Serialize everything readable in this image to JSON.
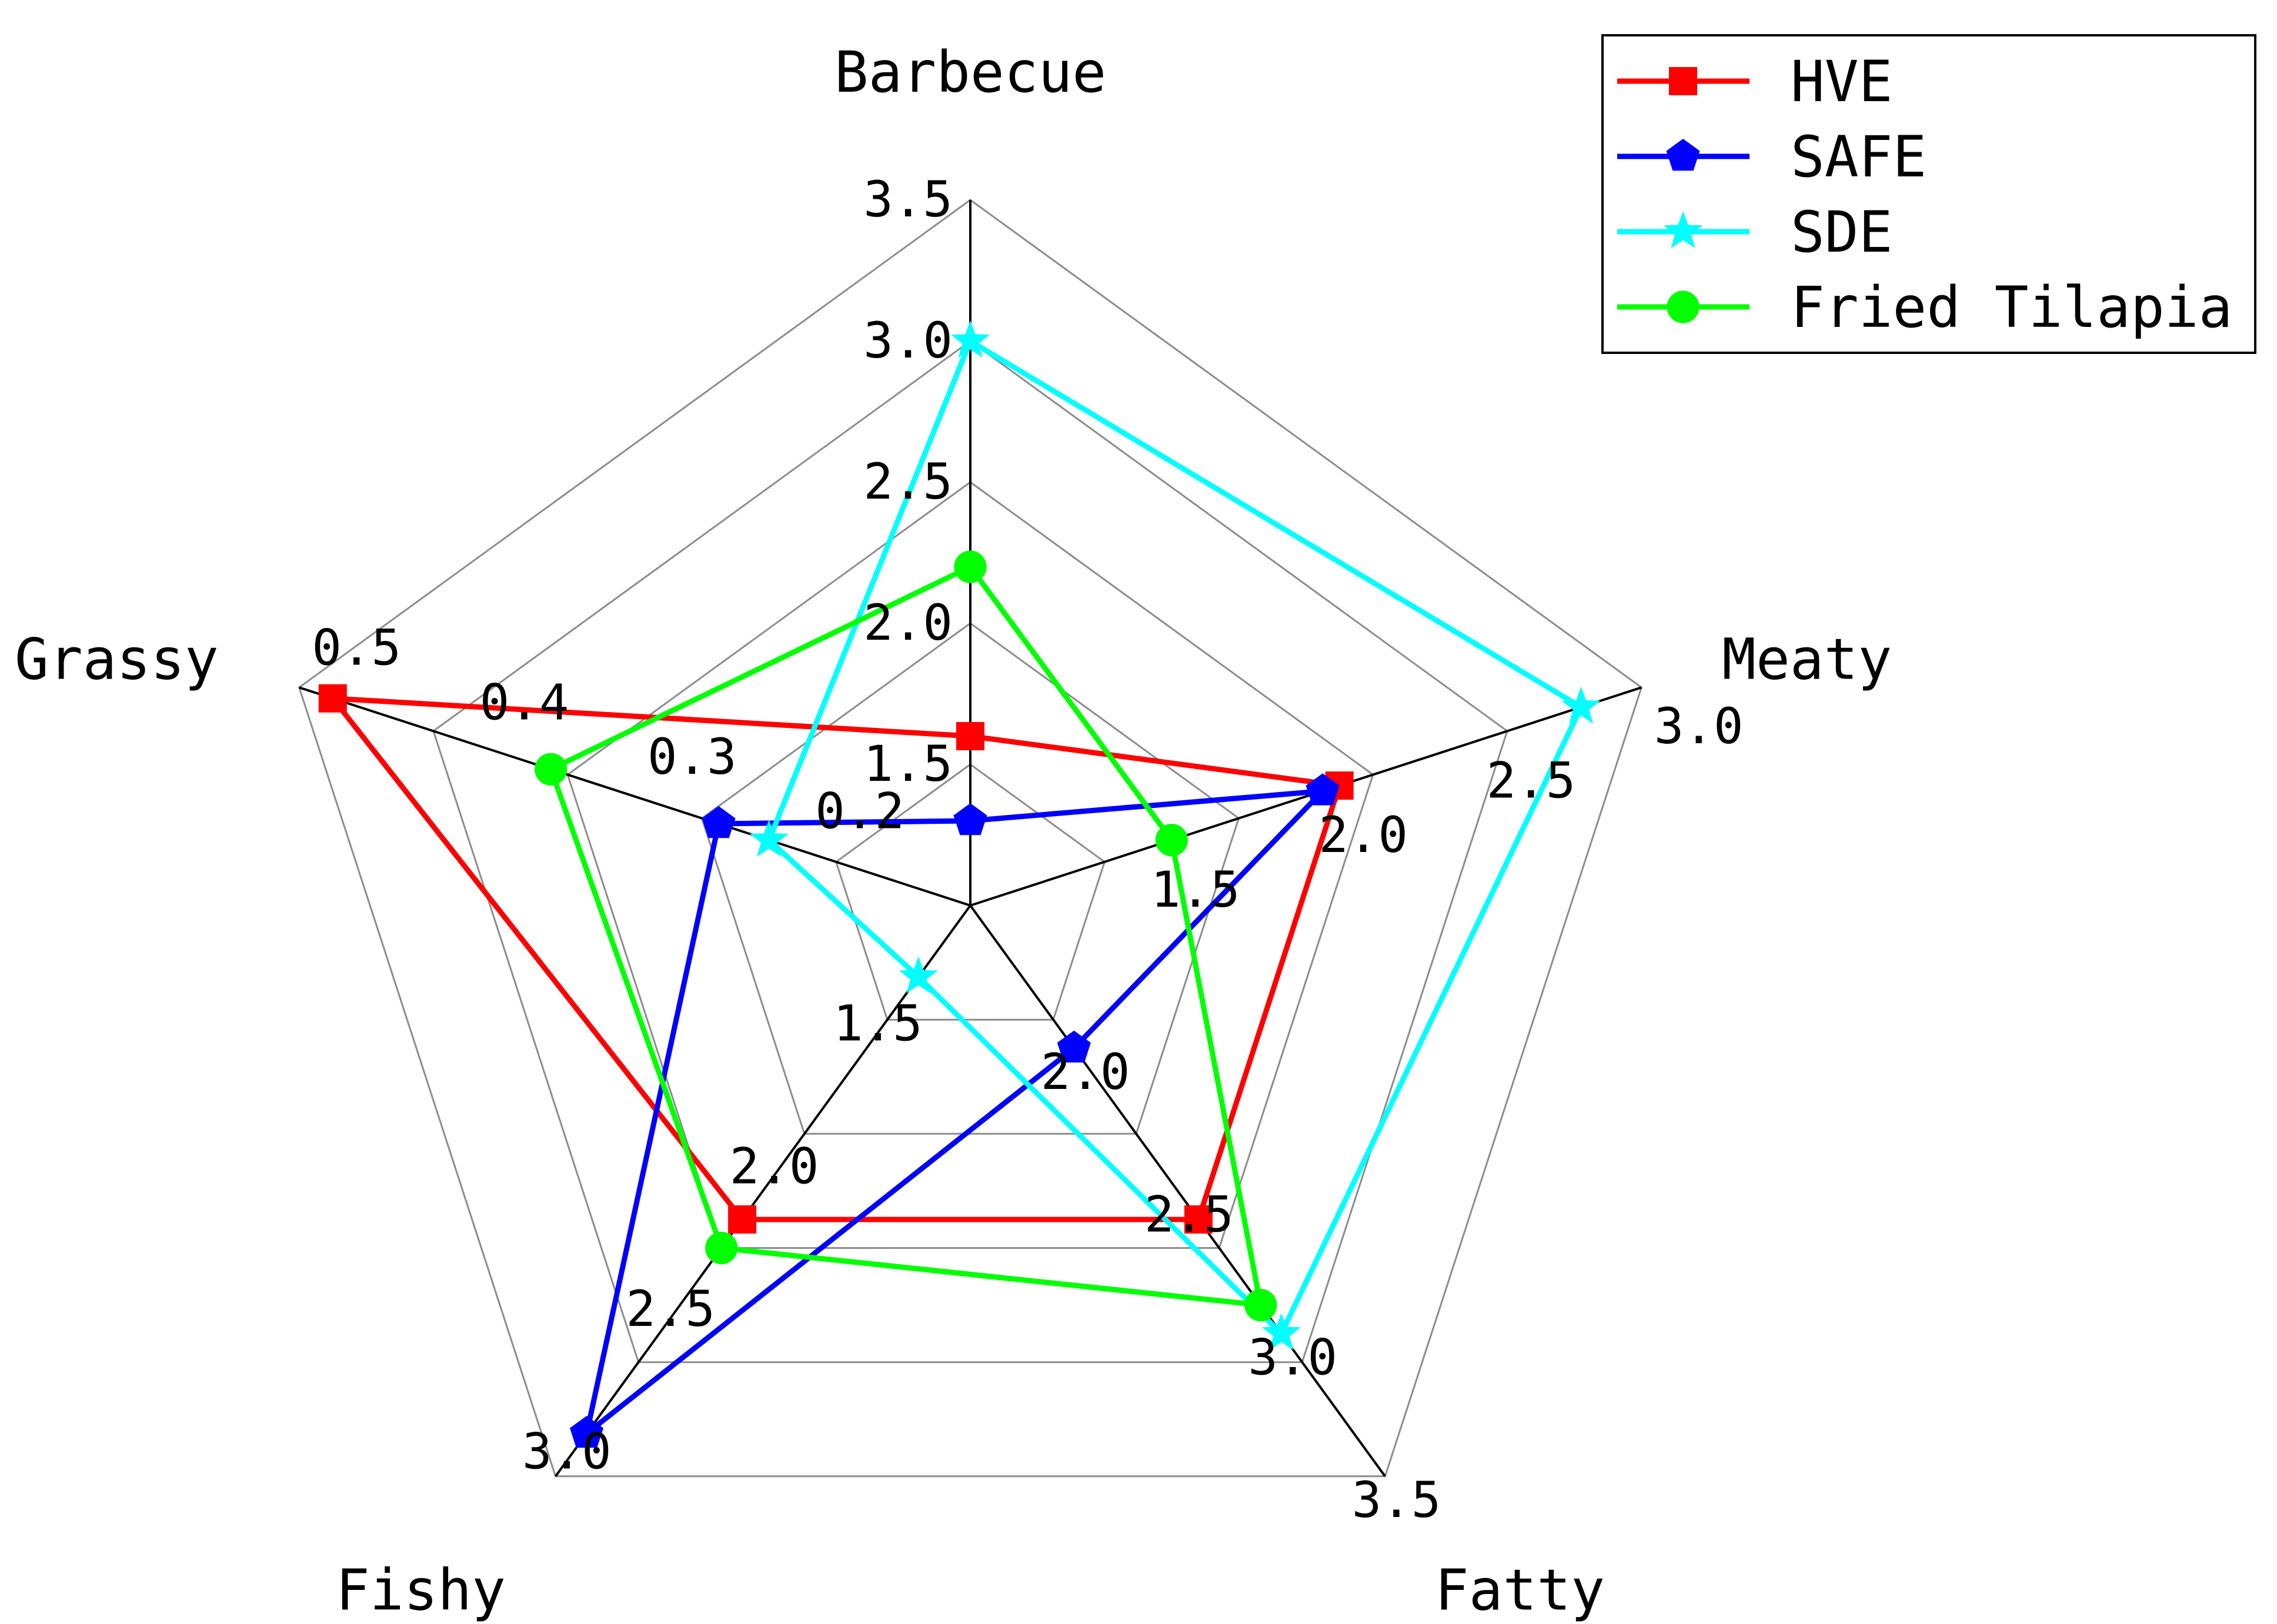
{
  "chart_data": {
    "type": "radar",
    "axes": [
      {
        "name": "Barbecue",
        "min": 1.0,
        "max": 3.5,
        "ticks": [
          "1.5",
          "2.0",
          "2.5",
          "3.0",
          "3.5"
        ]
      },
      {
        "name": "Meaty",
        "min": 1.0,
        "max": 3.0,
        "ticks": [
          "1.5",
          "2.0",
          "2.5",
          "3.0"
        ]
      },
      {
        "name": "Fatty",
        "min": 1.5,
        "max": 3.5,
        "ticks": [
          "2.0",
          "2.5",
          "3.0",
          "3.5"
        ]
      },
      {
        "name": "Fishy",
        "min": 1.0,
        "max": 3.0,
        "ticks": [
          "1.5",
          "2.0",
          "2.5",
          "3.0"
        ]
      },
      {
        "name": "Grassy",
        "min": 0.1,
        "max": 0.5,
        "ticks": [
          "0.2",
          "0.3",
          "0.4",
          "0.5"
        ]
      }
    ],
    "series": [
      {
        "name": "HVE",
        "color": "#ff0000",
        "marker": "square",
        "values": [
          1.6,
          2.1,
          2.6,
          2.1,
          0.48
        ]
      },
      {
        "name": "SAFE",
        "color": "#0000ff",
        "marker": "pentagon",
        "values": [
          1.3,
          2.05,
          2.0,
          2.85,
          0.25
        ]
      },
      {
        "name": "SDE",
        "color": "#00ffff",
        "marker": "star",
        "values": [
          3.0,
          2.82,
          3.0,
          1.25,
          0.22
        ]
      },
      {
        "name": "Fried Tilapia",
        "color": "#00ff00",
        "marker": "circle",
        "values": [
          2.2,
          1.6,
          2.9,
          2.2,
          0.35
        ]
      }
    ],
    "grid": true,
    "legend": "top-right"
  }
}
